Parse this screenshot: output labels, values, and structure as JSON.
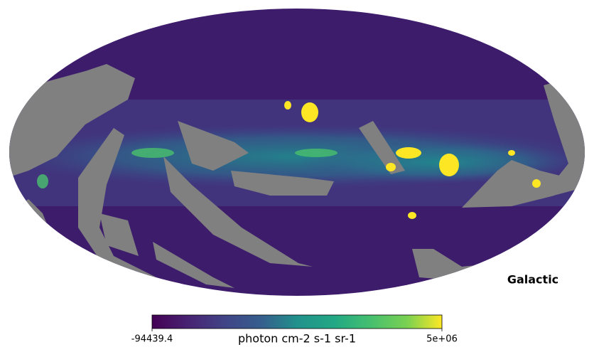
{
  "chart_data": {
    "type": "mollweide",
    "coord_label": "Galactic",
    "colorbar_label": "photon cm-2 s-1 sr-1",
    "clim": [
      -94439.4,
      5000000
    ],
    "cticks": [
      -94439.4,
      {
        "value": 5000000,
        "label": "5e+06"
      }
    ]
  }
}
